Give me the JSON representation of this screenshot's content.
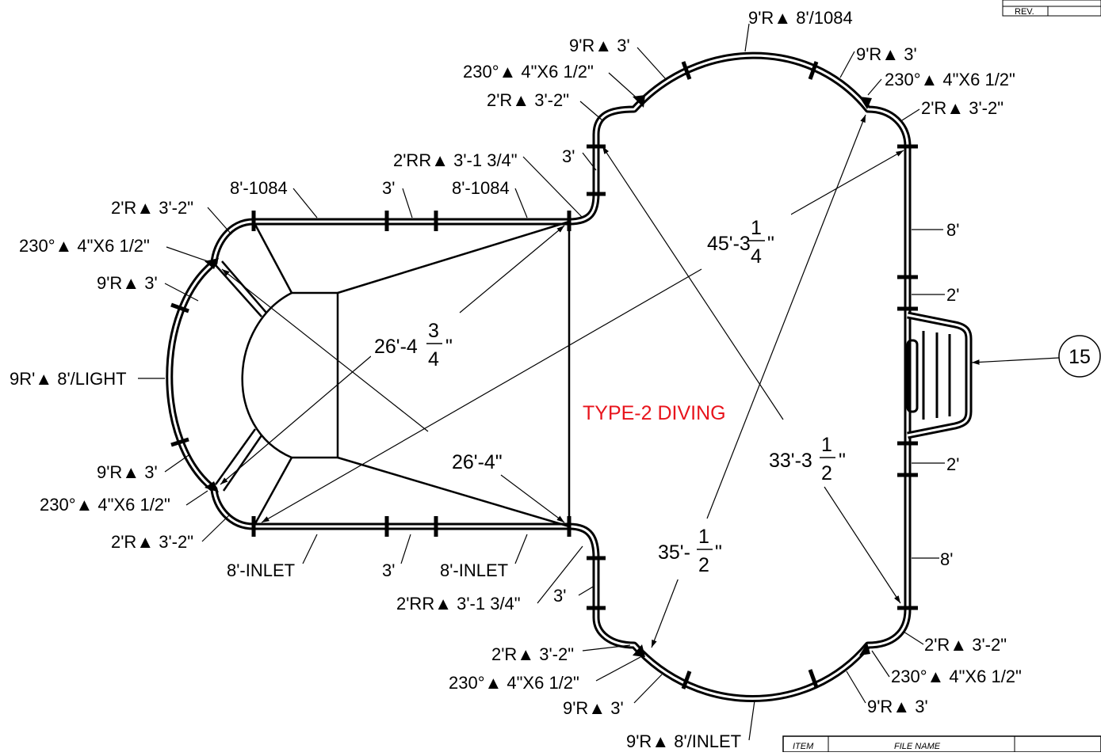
{
  "center_label": "TYPE-2 DIVING",
  "colors": {
    "line": "#000000",
    "accent": "#e8141c",
    "background": "#ffffff"
  },
  "corner_labels": {
    "rev": "REV.",
    "item": "ITEM",
    "file_name": "FILE NAME"
  },
  "callout_number": "15",
  "dimensions": {
    "d1": {
      "whole": "45'-3",
      "num": "1",
      "den": "4",
      "unit": "\""
    },
    "d2": {
      "whole": "26'-4",
      "num": "3",
      "den": "4",
      "unit": "\""
    },
    "d3": {
      "text": "26'-4\""
    },
    "d4": {
      "whole": "33'-3",
      "num": "1",
      "den": "2",
      "unit": "\""
    },
    "d5": {
      "whole": "35'-",
      "num": "1",
      "den": "2",
      "unit": "\""
    }
  },
  "labels": {
    "top_9r_8_1084": "9'R▲ 8'/1084",
    "top_left_9r_3": "9'R▲ 3'",
    "top_left_230": "230°▲ 4\"X6 1/2\"",
    "top_left_2r": "2'R▲ 3'-2\"",
    "top_right_9r_3": "9'R▲ 3'",
    "top_right_230": "230°▲ 4\"X6 1/2\"",
    "top_right_2r": "2'R▲ 3'-2\"",
    "top_3": "3'",
    "top_2rr": "2'RR▲ 3'-1 3/4\"",
    "top_8_1084_a": "8'-1084",
    "top_3_b": "3'",
    "top_8_1084_b": "8'-1084",
    "left_2r_top": "2'R▲ 3'-2\"",
    "left_230_top": "230°▲ 4\"X6 1/2\"",
    "left_9r_top": "9'R▲ 3'",
    "left_light": "9R'▲ 8'/LIGHT",
    "left_9r_bottom": "9'R▲ 3'",
    "left_230_bottom": "230°▲ 4\"X6 1/2\"",
    "left_2r_bottom": "2'R▲ 3'-2\"",
    "bottom_8_inlet_a": "8'-INLET",
    "bottom_3_a": "3'",
    "bottom_8_inlet_b": "8'-INLET",
    "bottom_2rr": "2'RR▲ 3'-1 3/4\"",
    "bottom_3_b": "3'",
    "bottom_left_2r": "2'R▲ 3'-2\"",
    "bottom_left_230": "230°▲ 4\"X6 1/2\"",
    "bottom_left_9r": "9'R▲ 3'",
    "bottom_9r_8_inlet": "9'R▲ 8'/INLET",
    "bottom_right_2r": "2'R▲ 3'-2\"",
    "bottom_right_230": "230°▲ 4\"X6 1/2\"",
    "bottom_right_9r": "9'R▲ 3'",
    "right_8_top": "8'",
    "right_2_top": "2'",
    "right_2_bottom": "2'",
    "right_8_bottom": "8'"
  }
}
